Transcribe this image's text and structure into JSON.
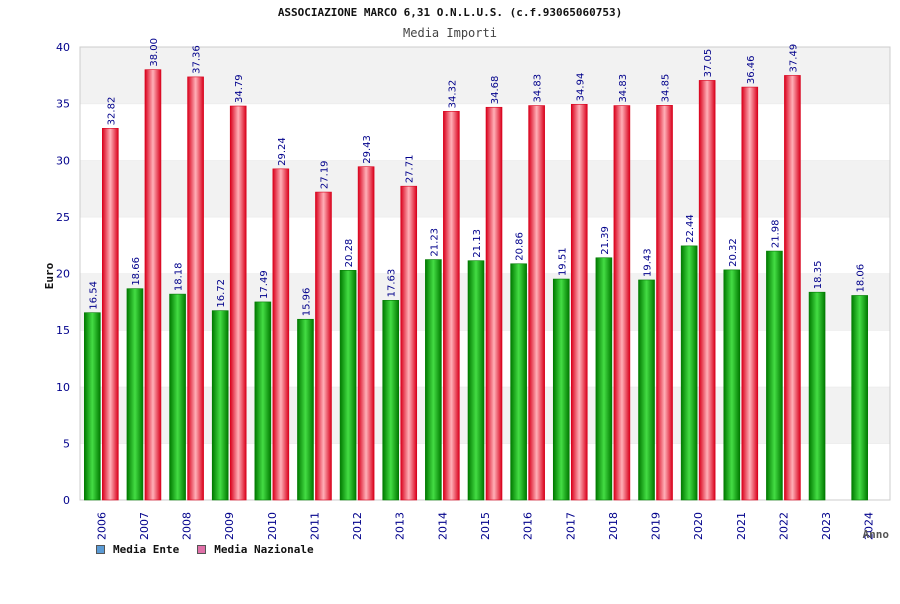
{
  "chart_data": {
    "type": "bar",
    "title": "ASSOCIAZIONE MARCO 6,31 O.N.L.U.S. (c.f.93065060753)",
    "subtitle": "Media Importi",
    "xlabel": "Anno",
    "ylabel": "Euro",
    "ylim": [
      0,
      40
    ],
    "yticks": [
      0,
      5,
      10,
      15,
      20,
      25,
      30,
      35,
      40
    ],
    "grid": true,
    "legend_position": "bottom-left",
    "categories": [
      "2006",
      "2007",
      "2008",
      "2009",
      "2010",
      "2011",
      "2012",
      "2013",
      "2014",
      "2015",
      "2016",
      "2017",
      "2018",
      "2019",
      "2020",
      "2021",
      "2022",
      "2023",
      "2024"
    ],
    "series": [
      {
        "name": "Media Ente",
        "values": [
          16.54,
          18.66,
          18.18,
          16.72,
          17.49,
          15.96,
          20.28,
          17.63,
          21.23,
          21.13,
          20.86,
          19.51,
          21.39,
          19.43,
          22.44,
          20.32,
          21.98,
          18.35,
          18.06
        ],
        "labels": [
          "16.54",
          "18.66",
          "18.18",
          "16.72",
          "17.49",
          "15.96",
          "20.28",
          "17.63",
          "21.23",
          "21.13",
          "20.86",
          "19.51",
          "21.39",
          "19.43",
          "22.44",
          "20.32",
          "21.98",
          "18.35",
          "18.06"
        ]
      },
      {
        "name": "Media Nazionale",
        "values": [
          32.82,
          38.0,
          37.36,
          34.79,
          29.24,
          27.19,
          29.43,
          27.71,
          34.32,
          34.68,
          34.83,
          34.94,
          34.83,
          34.85,
          37.05,
          36.46,
          37.49,
          null,
          null
        ],
        "labels": [
          "32.82",
          "38.00",
          "37.36",
          "34.79",
          "29.24",
          "27.19",
          "29.43",
          "27.71",
          "34.32",
          "34.68",
          "34.83",
          "34.94",
          "34.83",
          "34.85",
          "37.05",
          "36.46",
          "37.49",
          "",
          ""
        ]
      }
    ],
    "legend": [
      {
        "name": "Media Ente",
        "color": "#5b9bd5"
      },
      {
        "name": "Media Nazionale",
        "color": "#e070a8"
      }
    ],
    "colors": {
      "ente_dark": "#007a00",
      "ente_light": "#44dd44",
      "naz_dark": "#d9001b",
      "naz_light": "#ffb0b8",
      "band": "#f2f2f2",
      "axis_text": "#00008b"
    }
  }
}
